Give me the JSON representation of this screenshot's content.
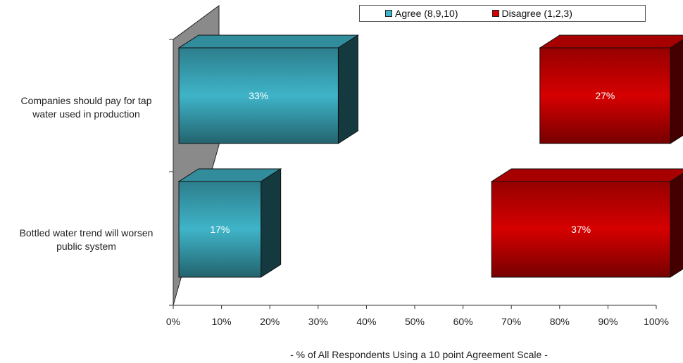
{
  "chart_data": {
    "type": "bar",
    "orientation": "horizontal",
    "three_d": true,
    "categories": [
      "Companies should pay for tap\nwater used in production",
      "Bottled water trend will worsen\npublic system"
    ],
    "series": [
      {
        "name": "Agree (8,9,10)",
        "color": "#3fb4c8",
        "values": [
          33,
          17
        ],
        "labels": [
          "33%",
          "17%"
        ],
        "anchor": "left"
      },
      {
        "name": "Disagree (1,2,3)",
        "color": "#d60000",
        "values": [
          27,
          37
        ],
        "labels": [
          "27%",
          "37%"
        ],
        "anchor": "right"
      }
    ],
    "xlim": [
      0,
      100
    ],
    "xticks": [
      "0%",
      "10%",
      "20%",
      "30%",
      "40%",
      "50%",
      "60%",
      "70%",
      "80%",
      "90%",
      "100%"
    ],
    "xlabel": "- % of All Respondents Using a 10 point Agreement Scale -",
    "legend_position": "top-right",
    "grid": false
  }
}
